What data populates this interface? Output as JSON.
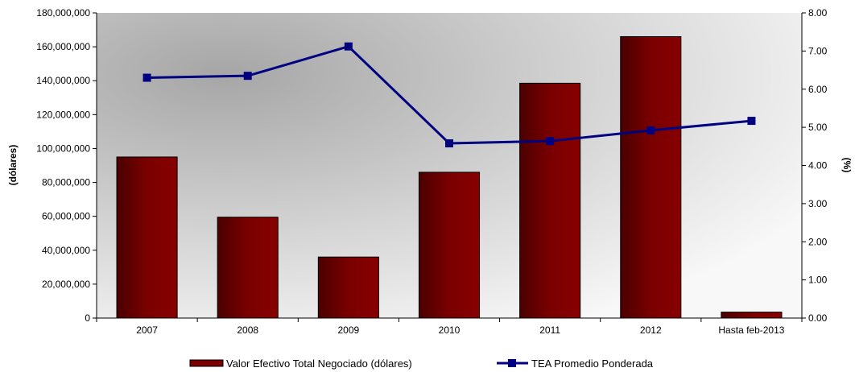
{
  "chart_data": {
    "type": "bar+line",
    "categories": [
      "2007",
      "2008",
      "2009",
      "2010",
      "2011",
      "2012",
      "Hasta feb-2013"
    ],
    "series": [
      {
        "name": "Valor Efectivo Total Negociado (dólares)",
        "type": "bar",
        "axis": "left",
        "values": [
          95000000,
          59500000,
          36000000,
          86000000,
          138500000,
          166000000,
          3500000
        ],
        "color": "#7a0000"
      },
      {
        "name": "TEA Promedio Ponderada",
        "type": "line",
        "axis": "right",
        "values": [
          6.3,
          6.35,
          7.12,
          4.58,
          4.64,
          4.92,
          5.17
        ],
        "color": "#000080"
      }
    ],
    "ylabel": "(dólares)",
    "ylabel_right": "(%)",
    "ylim": [
      0,
      180000000
    ],
    "ylim_right": [
      0,
      8
    ],
    "yticks": [
      "0",
      "20,000,000",
      "40,000,000",
      "60,000,000",
      "80,000,000",
      "100,000,000",
      "120,000,000",
      "140,000,000",
      "160,000,000",
      "180,000,000"
    ],
    "yticks_right": [
      "0.00",
      "1.00",
      "2.00",
      "3.00",
      "4.00",
      "5.00",
      "6.00",
      "7.00",
      "8.00"
    ],
    "legend_position": "bottom",
    "grid": false,
    "background": "gray gradient"
  }
}
